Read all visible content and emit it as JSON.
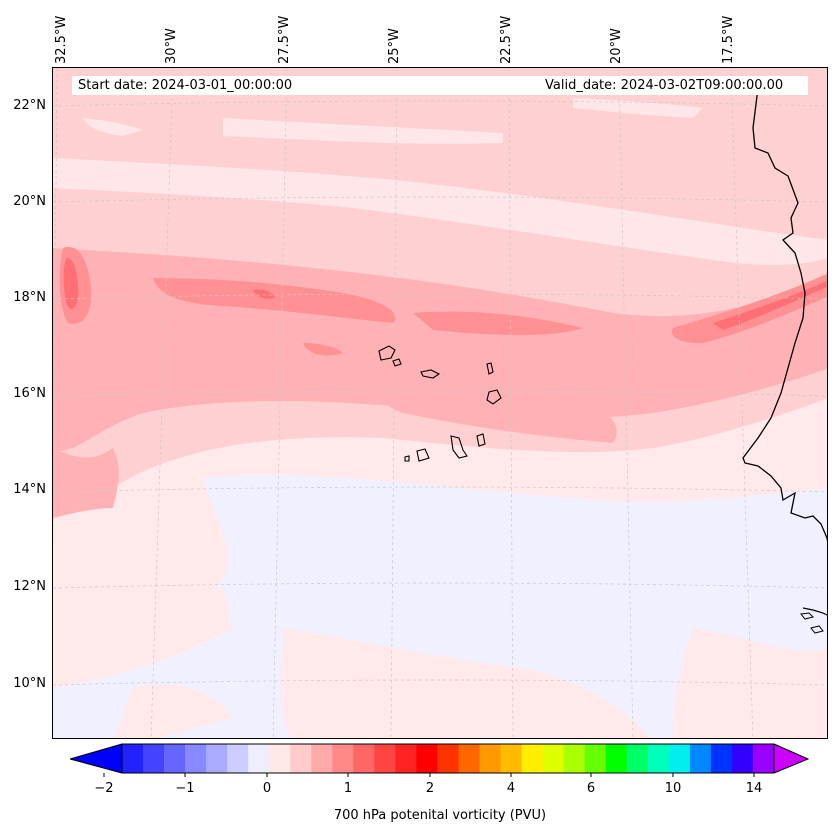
{
  "map": {
    "lon_labels": [
      "32.5°W",
      "30°W",
      "27.5°W",
      "25°W",
      "22.5°W",
      "20°W",
      "17.5°W"
    ],
    "lat_labels": [
      "22°N",
      "20°N",
      "18°N",
      "16°N",
      "14°N",
      "12°N",
      "10°N"
    ],
    "start_date": "Start date: 2024-03-01_00:00:00",
    "valid_date": "Valid_date: 2024-03-02T09:00:00.00",
    "field": "700 hPa potenital vorticity (PVU)"
  },
  "colorbar": {
    "tick_labels": [
      "−2",
      "−1",
      "0",
      "1",
      "2",
      "4",
      "6",
      "10",
      "14"
    ],
    "label": "700 hPa potenital vorticity (PVU)",
    "colors": [
      "#0000ff",
      "#2222ff",
      "#4444ff",
      "#6666ff",
      "#8888ff",
      "#aaaaff",
      "#ccccff",
      "#eeeeff",
      "#ffe8e8",
      "#ffcccc",
      "#ffaaaa",
      "#ff8888",
      "#ff6666",
      "#ff4444",
      "#ff2222",
      "#ff0000",
      "#ff3300",
      "#ff6600",
      "#ff9900",
      "#ffbb00",
      "#ffee00",
      "#ddff00",
      "#aaff00",
      "#66ff00",
      "#00ff00",
      "#00ff66",
      "#00ffbb",
      "#00eeee",
      "#0088ff",
      "#0033ff",
      "#3300ff",
      "#9900ff",
      "#cc00ff"
    ]
  }
}
